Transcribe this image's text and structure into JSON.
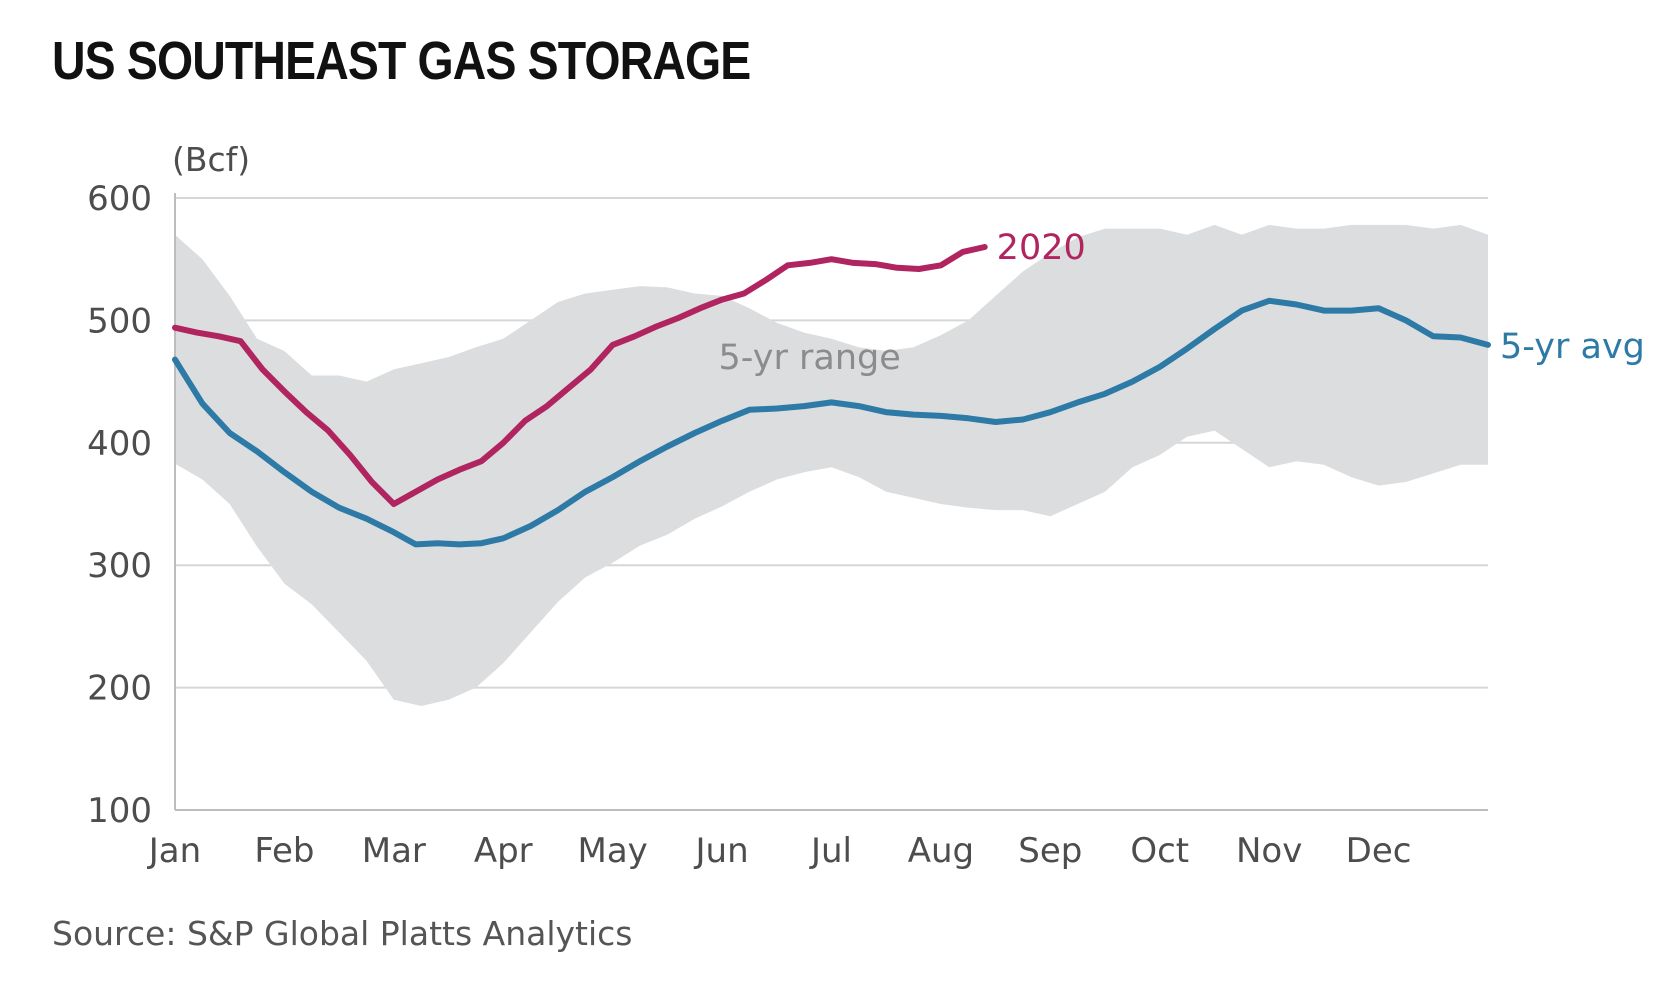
{
  "title": "US SOUTHEAST GAS STORAGE",
  "source": "Source: S&P Global Platts Analytics",
  "chart_data": {
    "type": "line",
    "ylabel": "(Bcf)",
    "ylim": [
      100,
      600
    ],
    "yticks": [
      100,
      200,
      300,
      400,
      500,
      600
    ],
    "grid": true,
    "x_range": [
      0,
      12
    ],
    "categories": [
      "Jan",
      "Feb",
      "Mar",
      "Apr",
      "May",
      "Jun",
      "Jul",
      "Aug",
      "Sep",
      "Oct",
      "Nov",
      "Dec"
    ],
    "range_band": {
      "name": "5-yr range",
      "x": [
        0,
        0.25,
        0.5,
        0.75,
        1.0,
        1.25,
        1.5,
        1.75,
        2.0,
        2.25,
        2.5,
        2.75,
        3.0,
        3.25,
        3.5,
        3.75,
        4.0,
        4.25,
        4.5,
        4.75,
        5.0,
        5.25,
        5.5,
        5.75,
        6.0,
        6.25,
        6.5,
        6.75,
        7.0,
        7.25,
        7.5,
        7.75,
        8.0,
        8.25,
        8.5,
        8.75,
        9.0,
        9.25,
        9.5,
        9.75,
        10.0,
        10.25,
        10.5,
        10.75,
        11.0,
        11.25,
        11.5,
        11.75,
        12.0
      ],
      "upper": [
        570,
        550,
        520,
        485,
        475,
        455,
        455,
        450,
        460,
        465,
        470,
        478,
        485,
        500,
        515,
        522,
        525,
        528,
        527,
        522,
        520,
        510,
        498,
        490,
        485,
        478,
        475,
        478,
        488,
        500,
        520,
        540,
        555,
        568,
        575,
        575,
        575,
        570,
        578,
        570,
        578,
        575,
        575,
        578,
        578,
        578,
        575,
        578,
        570
      ],
      "lower": [
        383,
        370,
        350,
        315,
        285,
        268,
        245,
        222,
        190,
        185,
        190,
        200,
        220,
        245,
        270,
        290,
        302,
        316,
        325,
        338,
        348,
        360,
        370,
        376,
        380,
        372,
        360,
        355,
        350,
        347,
        345,
        345,
        340,
        350,
        360,
        380,
        390,
        405,
        410,
        395,
        380,
        385,
        382,
        372,
        365,
        368,
        375,
        382,
        382
      ]
    },
    "series": [
      {
        "name": "5-yr avg",
        "x": [
          0,
          0.25,
          0.5,
          0.75,
          1.0,
          1.25,
          1.5,
          1.75,
          2.0,
          2.2,
          2.4,
          2.6,
          2.8,
          3.0,
          3.25,
          3.5,
          3.75,
          4.0,
          4.25,
          4.5,
          4.75,
          5.0,
          5.25,
          5.5,
          5.75,
          6.0,
          6.25,
          6.5,
          6.75,
          7.0,
          7.25,
          7.5,
          7.75,
          8.0,
          8.25,
          8.5,
          8.75,
          9.0,
          9.25,
          9.5,
          9.75,
          10.0,
          10.25,
          10.5,
          10.75,
          11.0,
          11.25,
          11.5,
          11.75,
          12.0
        ],
        "values": [
          468,
          432,
          408,
          393,
          376,
          360,
          347,
          338,
          327,
          317,
          318,
          317,
          318,
          322,
          332,
          345,
          360,
          372,
          385,
          397,
          408,
          418,
          427,
          428,
          430,
          433,
          430,
          425,
          423,
          422,
          420,
          417,
          419,
          425,
          433,
          440,
          450,
          462,
          477,
          493,
          508,
          516,
          513,
          508,
          508,
          510,
          500,
          487,
          486,
          480
        ]
      },
      {
        "name": "2020",
        "x": [
          0,
          0.2,
          0.4,
          0.6,
          0.8,
          1.0,
          1.2,
          1.4,
          1.6,
          1.8,
          2.0,
          2.2,
          2.4,
          2.6,
          2.8,
          3.0,
          3.2,
          3.4,
          3.6,
          3.8,
          4.0,
          4.2,
          4.4,
          4.6,
          4.8,
          5.0,
          5.2,
          5.4,
          5.6,
          5.8,
          6.0,
          6.2,
          6.4,
          6.6,
          6.8,
          7.0,
          7.2,
          7.4
        ],
        "values": [
          494,
          490,
          487,
          483,
          460,
          442,
          425,
          410,
          390,
          368,
          350,
          360,
          370,
          378,
          385,
          400,
          418,
          430,
          445,
          460,
          480,
          487,
          495,
          502,
          510,
          517,
          522,
          533,
          545,
          547,
          550,
          547,
          546,
          543,
          542,
          545,
          556,
          560
        ]
      }
    ],
    "annotations": [
      "5-yr range",
      "2020",
      "5-yr avg"
    ],
    "colors": {
      "range": "#dcdddf",
      "avg": "#2e7aa6",
      "y2020": "#b0245f",
      "grid": "#d6d6d6"
    }
  }
}
